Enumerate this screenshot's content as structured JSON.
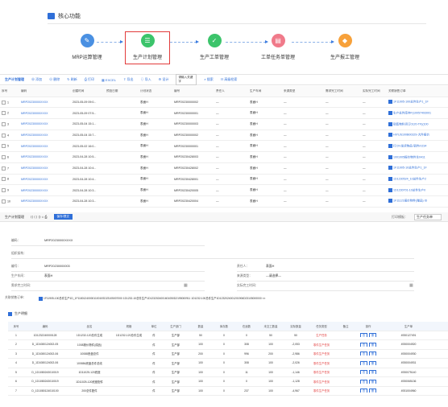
{
  "core": {
    "title": "核心功能",
    "flows": [
      {
        "label": "MRP运算管理",
        "color": "#4a90e2",
        "glyph": "✎"
      },
      {
        "label": "生产计划管理",
        "color": "#3cc46b",
        "glyph": "☰"
      },
      {
        "label": "生产工单管理",
        "color": "#3cc46b",
        "glyph": "✓"
      },
      {
        "label": "工单任务单管理",
        "color": "#f07a8a",
        "glyph": "▤"
      },
      {
        "label": "生产报工管理",
        "color": "#f7a13a",
        "glyph": "◆"
      }
    ]
  },
  "toolbar": {
    "title": "生产计划管理",
    "buttons": [
      "添加",
      "删除",
      "刷新",
      "打印",
      "EXCEL",
      "导出",
      "导入",
      "设计"
    ],
    "search_value": "请输入关键字",
    "search_btn": "搜索",
    "advanced": "高级检索"
  },
  "grid": {
    "headers": [
      "序号",
      "编码",
      "创建时间",
      "预投日期",
      "计划状态",
      "编号",
      "责任人",
      "生产车间",
      "来源类型",
      "需求完工时间",
      "实际完工时间",
      "关联销售订单"
    ],
    "rows": [
      [
        "1",
        "MRP20230000XXXX",
        "2023-05-09 09:0...",
        "表面H",
        "MRP20230000002",
        "—",
        "表面H",
        "—",
        "—",
        "—",
        "1F11905-100总件生产1_1F"
      ],
      [
        "2",
        "MRP20230000XXXX",
        "2023-05-09 07:5...",
        "表面H",
        "MRP20230000001",
        "—",
        "表面H",
        "—",
        "—",
        "—",
        "生产总件库存F)10057493001"
      ],
      [
        "3",
        "MRP20230000XXXX",
        "2023-05-04 15:1...",
        "表面H",
        "MRP20230000003",
        "—",
        "表面H",
        "—",
        "—",
        "—",
        "销售物料货订0120-TF)(100"
      ],
      [
        "4",
        "MRP20230000XXXX",
        "2023-05-04 15:7...",
        "表面H",
        "MRP20230000002",
        "—",
        "表面H",
        "—",
        "—",
        "—",
        "HIYUS100B00329-大件报价"
      ],
      [
        "5",
        "MRP20230000XXXX",
        "2023-05-02 16:0...",
        "表面H",
        "MRP20230000001",
        "—",
        "表面H",
        "—",
        "—",
        "—",
        "打CIV发货物品-销件m234"
      ],
      [
        "6",
        "MRP20230000XXXX",
        "2023-04-28 10:5...",
        "表面H",
        "MRP20230428003",
        "—",
        "表面H",
        "—",
        "—",
        "—",
        "1001005报价物件生0411"
      ],
      [
        "7",
        "MRP20230000XXXX",
        "2023-04-28 10:4...",
        "表面H",
        "MRP20230428002",
        "—",
        "表面H",
        "—",
        "—",
        "—",
        "1F11905-10总件生产1_1F"
      ],
      [
        "8",
        "MRP20230000XXXX",
        "2023-04-28 10:4...",
        "表面H",
        "MRP20230428001",
        "—",
        "表面H",
        "—",
        "—",
        "—",
        "1D1230524_10总件生产2"
      ],
      [
        "9",
        "MRP20230000XXXX",
        "2023-04-28 10:3...",
        "表面H",
        "MRP20230420005",
        "—",
        "表面H",
        "—",
        "—",
        "—",
        "1D1230701-10总件生产0"
      ],
      [
        "10",
        "MRP20230000XXXX",
        "2023-04-28 10:3...",
        "表面H",
        "MRP20230420004",
        "—",
        "表面H",
        "—",
        "—",
        "—",
        "1F11121报价物件(赠品) ID"
      ]
    ]
  },
  "formbar": {
    "title": "生产计划管理",
    "save": "保存/提交",
    "print_label": "打印模板：",
    "print_select": "生产任务单"
  },
  "form": {
    "code_label": "编码：",
    "code_value": "MRP20230000XXXX",
    "org_label": "组织架构：",
    "num_label": "编号：",
    "num_value": "MRP20230000003",
    "owner_label": "责任人：",
    "owner_value": "表面H",
    "workshop_label": "生产车间：",
    "workshop_value": "表面H",
    "source_label": "来源类型：",
    "source_value": "—请选择—",
    "need_time_label": "需求完工时间：",
    "actual_time_label": "实际完工时间：",
    "sales_label": "关联销售订单：",
    "sales_value": "1F11905-100总件生产1D_1F11801240000110010SD23105007000 1D1232-10总件生产1D1232024001601050D2195000911 1D1232-100总件生产1D1232024001201906D23105000000 ××"
  },
  "detail": {
    "title": "生产明细",
    "headers": [
      "序号",
      "编码",
      "品名",
      "规格",
      "单位",
      "生产部门",
      "数量",
      "库存数",
      "在途数",
      "未交工数量",
      "实际数量",
      "任务类型",
      "备注",
      "操作",
      "生产单"
    ],
    "rows": [
      [
        "1",
        "1D1232240000128",
        "1D1232-120总件生成",
        "1D1232-120总件生成",
        "件",
        "生产部",
        "50",
        "0",
        "0",
        "50",
        "生产任务",
        "",
        "4930127491"
      ],
      [
        "2",
        "D_1D1080124002-05",
        "1008报价物件(成品)",
        "",
        "件",
        "生产部",
        "100",
        "0",
        "308",
        "-2,053",
        "零件生产任务",
        "",
        "4930004920"
      ],
      [
        "3",
        "D_1D1080124002-06",
        "10088底盘总件",
        "",
        "件",
        "生产部",
        "200",
        "0",
        "996",
        "-2,986",
        "零件生产任务",
        "",
        "4930004930"
      ],
      [
        "4",
        "D_1D1080124002-06",
        "100884底盘总件总线",
        "",
        "件",
        "生产部",
        "100",
        "0",
        "308",
        "-2,026",
        "零件生产任务",
        "",
        "4930004931"
      ],
      [
        "5",
        "D_1D1080243010019",
        "1D11025-120底座",
        "",
        "件",
        "生产部",
        "100",
        "0",
        "11",
        "-1,146",
        "零件生产任务",
        "",
        "4930075140"
      ],
      [
        "6",
        "D_1D1080243010019",
        "1D11025-120底座配件",
        "",
        "件",
        "生产部",
        "100",
        "0",
        "0",
        "-1,128",
        "零件生产任务",
        "",
        "4930065136"
      ],
      [
        "7",
        "D_1D1080124010100",
        "200总件配件",
        "",
        "件",
        "生产部",
        "100",
        "0",
        "237",
        "-4,967",
        "零件生产任务",
        "",
        "4931004960"
      ]
    ],
    "op_labels": [
      "查",
      "删"
    ]
  }
}
